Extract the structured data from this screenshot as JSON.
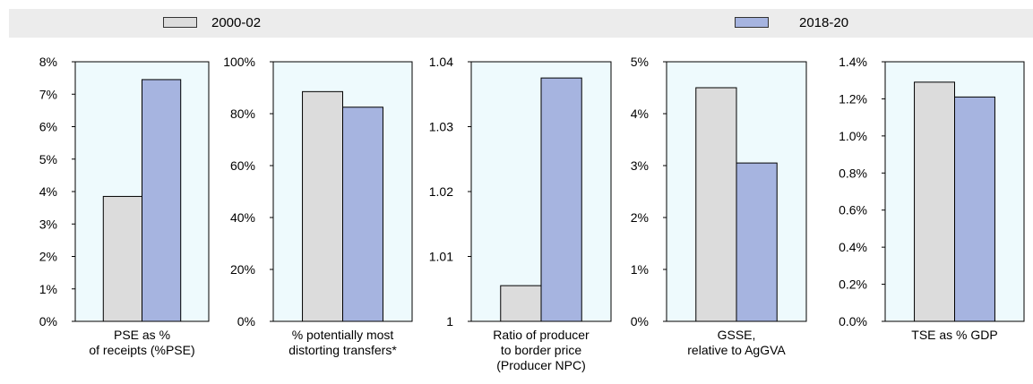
{
  "legend": {
    "items": [
      {
        "name": "2000-02",
        "color": "#dcdcdc"
      },
      {
        "name": "2018-20",
        "color": "#a6b4e0"
      }
    ]
  },
  "chart_data": [
    {
      "type": "bar",
      "categories": [
        "PSE as % of receipts (%PSE)"
      ],
      "xlabel_lines": [
        "PSE as %",
        "of receipts (%PSE)"
      ],
      "series": [
        {
          "name": "2000-02",
          "values": [
            3.85
          ]
        },
        {
          "name": "2018-20",
          "values": [
            7.45
          ]
        }
      ],
      "ylim": [
        0,
        8
      ],
      "yticks": [
        0,
        1,
        2,
        3,
        4,
        5,
        6,
        7,
        8
      ],
      "ytick_labels": [
        "0%",
        "1%",
        "2%",
        "3%",
        "4%",
        "5%",
        "6%",
        "7%",
        "8%"
      ]
    },
    {
      "type": "bar",
      "categories": [
        "% potentially most distorting transfers*"
      ],
      "xlabel_lines": [
        "% potentially most",
        "distorting transfers*"
      ],
      "series": [
        {
          "name": "2000-02",
          "values": [
            88.5
          ]
        },
        {
          "name": "2018-20",
          "values": [
            82.5
          ]
        }
      ],
      "ylim": [
        0,
        100
      ],
      "yticks": [
        0,
        20,
        40,
        60,
        80,
        100
      ],
      "ytick_labels": [
        "0%",
        "20%",
        "40%",
        "60%",
        "80%",
        "100%"
      ]
    },
    {
      "type": "bar",
      "categories": [
        "Ratio of producer to border price (Producer NPC)"
      ],
      "xlabel_lines": [
        "Ratio of producer",
        "to border price",
        "(Producer NPC)"
      ],
      "series": [
        {
          "name": "2000-02",
          "values": [
            1.0055
          ]
        },
        {
          "name": "2018-20",
          "values": [
            1.0375
          ]
        }
      ],
      "ylim": [
        1,
        1.04
      ],
      "yticks": [
        1,
        1.01,
        1.02,
        1.03,
        1.04
      ],
      "ytick_labels": [
        "1",
        "1.01",
        "1.02",
        "1.03",
        "1.04"
      ]
    },
    {
      "type": "bar",
      "categories": [
        "GSSE, relative to AgGVA"
      ],
      "xlabel_lines": [
        "GSSE,",
        "relative to AgGVA"
      ],
      "series": [
        {
          "name": "2000-02",
          "values": [
            4.5
          ]
        },
        {
          "name": "2018-20",
          "values": [
            3.05
          ]
        }
      ],
      "ylim": [
        0,
        5
      ],
      "yticks": [
        0,
        1,
        2,
        3,
        4,
        5
      ],
      "ytick_labels": [
        "0%",
        "1%",
        "2%",
        "3%",
        "4%",
        "5%"
      ]
    },
    {
      "type": "bar",
      "categories": [
        "TSE as % GDP"
      ],
      "xlabel_lines": [
        "TSE as % GDP"
      ],
      "series": [
        {
          "name": "2000-02",
          "values": [
            1.29
          ]
        },
        {
          "name": "2018-20",
          "values": [
            1.21
          ]
        }
      ],
      "ylim": [
        0,
        1.4
      ],
      "yticks": [
        0,
        0.2,
        0.4,
        0.6,
        0.8,
        1.0,
        1.2,
        1.4
      ],
      "ytick_labels": [
        "0.0%",
        "0.2%",
        "0.4%",
        "0.6%",
        "0.8%",
        "1.0%",
        "1.2%",
        "1.4%"
      ]
    }
  ]
}
